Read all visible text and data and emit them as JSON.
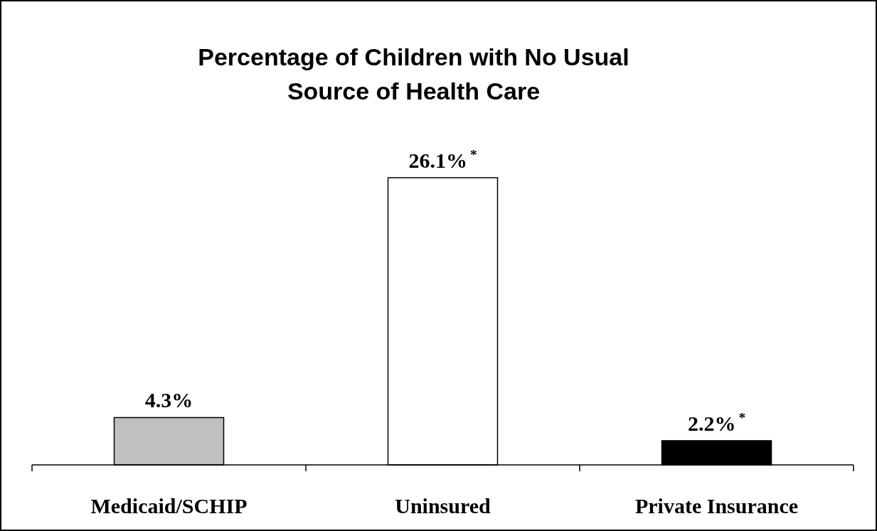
{
  "chart_data": {
    "type": "bar",
    "title": "Percentage of Children with No Usual Source of Health Care",
    "categories": [
      "Medicaid/SCHIP",
      "Uninsured",
      "Private Insurance"
    ],
    "values": [
      4.3,
      26.1,
      2.2
    ],
    "colors": [
      "#c0c0c0",
      "#ffffff",
      "#000000"
    ],
    "value_labels": [
      "4.3%",
      "26.1%$^{*}$",
      "2.2%$^{*}$"
    ]
  }
}
